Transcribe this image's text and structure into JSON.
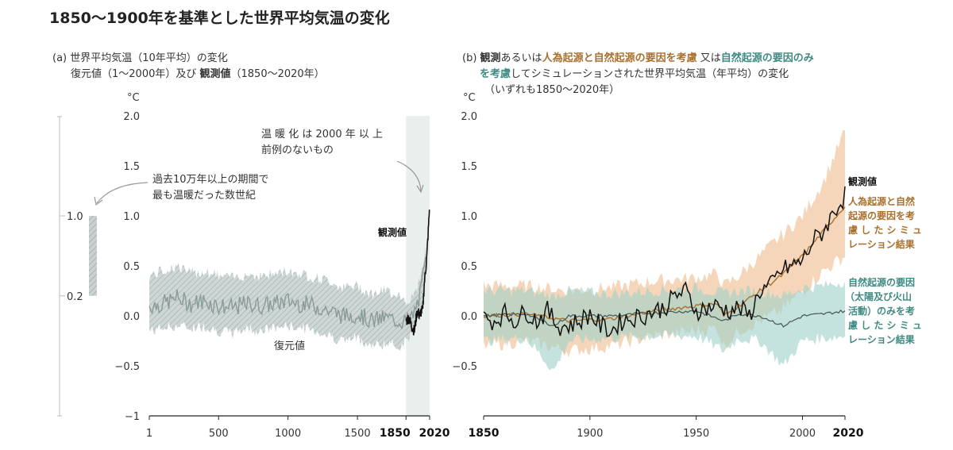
{
  "title": "1850～1900年を基準とした世界平均気温の変化",
  "panel_a": {
    "heading_1": "(a) 世界平均気温（10年平均）の変化",
    "heading_2a": "復元値（1～2000年）及び ",
    "heading_2b": "観測値",
    "heading_2c": "（1850～2020年）",
    "unit": "°C",
    "annotation_warming_1": "温 暖 化 は 2000 年 以 上",
    "annotation_warming_2": "前例のないもの",
    "annotation_past_1": "過去10万年以上の期間で",
    "annotation_past_2": "最も温暖だった数世紀",
    "label_observed": "観測値",
    "label_reconstructed": "復元値",
    "range_bar_top": "1.0",
    "range_bar_bottom": "0.2"
  },
  "panel_b": {
    "heading_1a": "(b) ",
    "heading_1b": "観測",
    "heading_1c": "あるいは",
    "heading_1d": "人為起源と自然起源の要因を考慮",
    "heading_1e": " 又は",
    "heading_1f": "自然起源の要因のみ",
    "heading_2a": "を考慮",
    "heading_2b": "してシミュレーションされた世界平均気温（年平均）の変化",
    "heading_3": "（いずれも1850～2020年）",
    "unit": "°C",
    "label_observed": "観測値",
    "label_human_1": "人為起源と自然",
    "label_human_2": "起源の要因を考",
    "label_human_3": "慮 し た シ ミ ュ",
    "label_human_4": "レーション結果",
    "label_natural_1": "自然起源の要因",
    "label_natural_2": "（太陽及び火山",
    "label_natural_3": "活動）のみを考",
    "label_natural_4": "慮 し た シ ミ ュ",
    "label_natural_5": "レーション結果"
  },
  "colors": {
    "reconstruction": "#8a9a98",
    "reconstruction_band": "#b9c4c3",
    "observed": "#111111",
    "human": "#a8702f",
    "human_band": "#f3cfae",
    "natural": "#3f8a82",
    "natural_band": "#9fd0c8",
    "shade": "#e8efec"
  },
  "chart_data": [
    {
      "type": "line",
      "panel": "a",
      "ylabel": "°C",
      "ylim": [
        -1,
        2
      ],
      "yticks": [
        "2.0",
        "1.5",
        "1.0",
        "0.5",
        "0.0",
        "−0.5",
        "−1"
      ],
      "xlim": [
        1,
        2020
      ],
      "xticks": [
        "1",
        "500",
        "1000",
        "1500",
        "1850",
        "2020"
      ],
      "series": [
        {
          "name": "復元値",
          "x": [
            1,
            100,
            200,
            300,
            400,
            500,
            600,
            700,
            800,
            900,
            1000,
            1100,
            1200,
            1300,
            1400,
            1500,
            1600,
            1700,
            1800,
            1850,
            1900,
            1950,
            2000
          ],
          "y": [
            0.1,
            0.12,
            0.18,
            0.12,
            0.15,
            0.1,
            0.08,
            0.12,
            0.1,
            0.12,
            0.15,
            0.12,
            0.1,
            0.05,
            0.0,
            0.02,
            -0.05,
            -0.02,
            -0.05,
            -0.05,
            0.0,
            0.2,
            0.6
          ],
          "range_low": [
            -0.15,
            -0.12,
            -0.1,
            -0.12,
            -0.1,
            -0.15,
            -0.18,
            -0.12,
            -0.15,
            -0.12,
            -0.1,
            -0.12,
            -0.15,
            -0.2,
            -0.25,
            -0.22,
            -0.3,
            -0.28,
            -0.3,
            -0.25,
            -0.15,
            0.05,
            0.45
          ],
          "range_high": [
            0.4,
            0.45,
            0.5,
            0.42,
            0.45,
            0.4,
            0.38,
            0.42,
            0.4,
            0.42,
            0.45,
            0.42,
            0.38,
            0.35,
            0.28,
            0.3,
            0.22,
            0.25,
            0.22,
            0.15,
            0.18,
            0.35,
            0.75
          ]
        },
        {
          "name": "観測値",
          "x": [
            1850,
            1870,
            1890,
            1910,
            1930,
            1950,
            1960,
            1970,
            1980,
            1990,
            2000,
            2010,
            2020
          ],
          "y": [
            -0.05,
            -0.02,
            -0.1,
            -0.15,
            0.05,
            0.0,
            0.05,
            0.05,
            0.3,
            0.45,
            0.6,
            0.85,
            1.1
          ]
        }
      ],
      "range_bar": {
        "low": 0.2,
        "high": 1.0
      }
    },
    {
      "type": "line",
      "panel": "b",
      "ylabel": "°C",
      "ylim": [
        -1,
        2
      ],
      "yticks": [
        "2.0",
        "1.5",
        "1.0",
        "0.5",
        "0.0",
        "−0.5"
      ],
      "xlim": [
        1850,
        2020
      ],
      "xticks": [
        "1850",
        "1900",
        "1950",
        "2000",
        "2020"
      ],
      "series": [
        {
          "name": "観測値",
          "x": [
            1850,
            1855,
            1860,
            1865,
            1870,
            1875,
            1880,
            1885,
            1890,
            1895,
            1900,
            1905,
            1910,
            1915,
            1920,
            1925,
            1930,
            1935,
            1940,
            1945,
            1950,
            1955,
            1960,
            1965,
            1970,
            1975,
            1980,
            1985,
            1990,
            1995,
            2000,
            2005,
            2010,
            2015,
            2020
          ],
          "y": [
            -0.02,
            -0.05,
            0.03,
            -0.05,
            0.05,
            -0.05,
            0.05,
            -0.1,
            -0.1,
            -0.05,
            0.02,
            -0.1,
            -0.15,
            -0.05,
            -0.02,
            0.0,
            0.05,
            0.08,
            0.2,
            0.25,
            0.05,
            0.08,
            0.1,
            0.05,
            0.08,
            0.0,
            0.25,
            0.3,
            0.45,
            0.5,
            0.55,
            0.75,
            0.85,
            1.05,
            1.2
          ]
        },
        {
          "name": "人為起源と自然起源の要因を考慮したシミュレーション結果",
          "x": [
            1850,
            1870,
            1890,
            1910,
            1930,
            1950,
            1960,
            1963,
            1970,
            1980,
            1990,
            2000,
            2010,
            2020
          ],
          "y": [
            0.0,
            0.02,
            -0.05,
            -0.03,
            0.05,
            0.1,
            0.12,
            0.0,
            0.1,
            0.25,
            0.4,
            0.6,
            0.85,
            1.1
          ],
          "range_low": [
            -0.3,
            -0.25,
            -0.35,
            -0.3,
            -0.2,
            -0.15,
            -0.12,
            -0.3,
            -0.15,
            -0.05,
            0.05,
            0.25,
            0.45,
            0.6
          ],
          "range_high": [
            0.3,
            0.3,
            0.25,
            0.28,
            0.35,
            0.38,
            0.42,
            0.3,
            0.4,
            0.6,
            0.8,
            1.0,
            1.35,
            1.85
          ]
        },
        {
          "name": "自然起源の要因（太陽及び火山活動）のみを考慮したシミュレーション結果",
          "x": [
            1850,
            1870,
            1883,
            1890,
            1910,
            1930,
            1950,
            1963,
            1970,
            1980,
            1991,
            2000,
            2010,
            2020
          ],
          "y": [
            0.0,
            0.02,
            -0.1,
            0.0,
            0.0,
            0.03,
            0.05,
            -0.05,
            0.02,
            0.0,
            -0.1,
            0.0,
            0.02,
            0.05
          ],
          "range_low": [
            -0.25,
            -0.22,
            -0.55,
            -0.25,
            -0.22,
            -0.2,
            -0.2,
            -0.35,
            -0.22,
            -0.25,
            -0.5,
            -0.25,
            -0.22,
            -0.2
          ],
          "range_high": [
            0.25,
            0.25,
            0.2,
            0.25,
            0.22,
            0.25,
            0.28,
            0.22,
            0.25,
            0.25,
            0.2,
            0.28,
            0.3,
            0.35
          ]
        }
      ]
    }
  ]
}
